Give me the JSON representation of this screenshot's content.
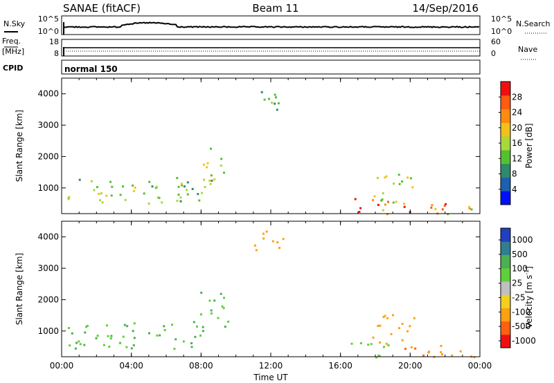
{
  "header": {
    "station": "SANAE (fitACF)",
    "beam": "Beam 11",
    "date": "14/Sep/2016"
  },
  "noise_panel": {
    "left_label": "N.Sky",
    "right_label": "N.Search",
    "left_ticks": [
      "10^5",
      "10^0"
    ],
    "right_ticks": [
      "10^5",
      "10^0"
    ]
  },
  "freq_panel": {
    "left_label_1": "Freq.",
    "left_label_2": "[MHz]",
    "right_label": "Nave",
    "left_ticks": [
      "18",
      "8"
    ],
    "right_ticks": [
      "60",
      "0"
    ]
  },
  "cpid_panel": {
    "label": "CPID",
    "text": "normal 150"
  },
  "colors": {
    "power_scale": [
      "#0010ff",
      "#1d5fb0",
      "#2e8a6b",
      "#55c030",
      "#a8d83a",
      "#f2c21b",
      "#ff8a10",
      "#ff5a10",
      "#ee1010"
    ],
    "velocity_scale": [
      "#2040c0",
      "#2f7f8f",
      "#4caf50",
      "#5ed03a",
      "#c0c0c0",
      "#f2d020",
      "#ffa010",
      "#ff6010",
      "#ee1010"
    ]
  },
  "chart_data": [
    {
      "type": "heatmap",
      "title": "",
      "xlabel": "",
      "ylabel": "Slant Range [km]",
      "x_ticks": [
        "00:00",
        "04:00",
        "08:00",
        "12:00",
        "16:00",
        "20:00",
        "00:00"
      ],
      "y_ticks": [
        "1000",
        "2000",
        "3000",
        "4000"
      ],
      "xlim": [
        0,
        24
      ],
      "ylim": [
        180,
        4500
      ],
      "colorbar": {
        "label": "Power [dB]",
        "ticks": [
          "4",
          "8",
          "12",
          "16",
          "20",
          "24",
          "28"
        ],
        "range": [
          0,
          32
        ]
      },
      "echo_regions": [
        {
          "t": [
            0.3,
            8.2
          ],
          "r": [
            450,
            1350
          ],
          "v": 14
        },
        {
          "t": [
            7.9,
            9.6
          ],
          "r": [
            1150,
            2300
          ],
          "v": 14
        },
        {
          "t": [
            11.0,
            12.7
          ],
          "r": [
            3500,
            4300
          ],
          "v": 12
        },
        {
          "t": [
            16.0,
            18.7
          ],
          "r": [
            180,
            700
          ],
          "v": 26
        },
        {
          "t": [
            17.8,
            20.2
          ],
          "r": [
            500,
            1550
          ],
          "v": 16
        },
        {
          "t": [
            19.3,
            22.0
          ],
          "r": [
            180,
            600
          ],
          "v": 28
        },
        {
          "t": [
            21.5,
            23.8
          ],
          "r": [
            180,
            520
          ],
          "v": 16
        }
      ]
    },
    {
      "type": "heatmap",
      "title": "",
      "xlabel": "Time UT",
      "ylabel": "Slant Range [km]",
      "x_ticks": [
        "00:00",
        "04:00",
        "08:00",
        "12:00",
        "16:00",
        "20:00",
        "00:00"
      ],
      "y_ticks": [
        "1000",
        "2000",
        "3000",
        "4000"
      ],
      "xlim": [
        0,
        24
      ],
      "ylim": [
        180,
        4500
      ],
      "colorbar": {
        "label": "Velocity [m s",
        "label_sup": "-1",
        "label_end": "]",
        "ticks": [
          "1000",
          "500",
          "100",
          "25",
          "-25",
          "-100",
          "-500",
          "-1000"
        ]
      },
      "echo_regions": [
        {
          "t": [
            0.3,
            8.2
          ],
          "r": [
            450,
            1350
          ],
          "v": 100
        },
        {
          "t": [
            7.9,
            9.6
          ],
          "r": [
            1150,
            2300
          ],
          "v": 100
        },
        {
          "t": [
            11.0,
            12.7
          ],
          "r": [
            3500,
            4300
          ],
          "v": -300
        },
        {
          "t": [
            16.0,
            18.7
          ],
          "r": [
            180,
            700
          ],
          "v": 50
        },
        {
          "t": [
            17.8,
            20.2
          ],
          "r": [
            500,
            1550
          ],
          "v": -300
        },
        {
          "t": [
            19.3,
            22.0
          ],
          "r": [
            180,
            600
          ],
          "v": -400
        },
        {
          "t": [
            21.5,
            23.8
          ],
          "r": [
            180,
            520
          ],
          "v": -200
        }
      ]
    }
  ]
}
